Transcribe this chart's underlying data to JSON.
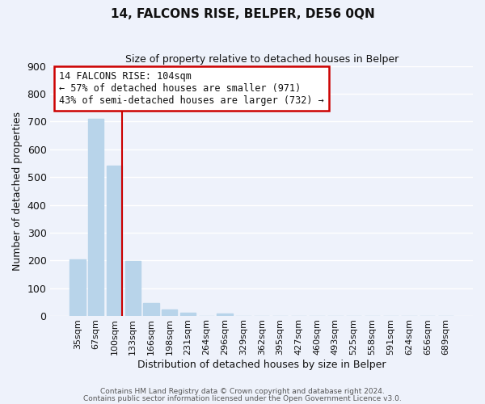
{
  "title": "14, FALCONS RISE, BELPER, DE56 0QN",
  "subtitle": "Size of property relative to detached houses in Belper",
  "xlabel": "Distribution of detached houses by size in Belper",
  "ylabel": "Number of detached properties",
  "bar_labels": [
    "35sqm",
    "67sqm",
    "100sqm",
    "133sqm",
    "166sqm",
    "198sqm",
    "231sqm",
    "264sqm",
    "296sqm",
    "329sqm",
    "362sqm",
    "395sqm",
    "427sqm",
    "460sqm",
    "493sqm",
    "525sqm",
    "558sqm",
    "591sqm",
    "624sqm",
    "656sqm",
    "689sqm"
  ],
  "bar_values": [
    205,
    710,
    540,
    197,
    47,
    22,
    13,
    0,
    10,
    0,
    0,
    0,
    0,
    0,
    0,
    0,
    0,
    0,
    0,
    0,
    0
  ],
  "bar_color": "#b8d4ea",
  "highlight_bar_index": 2,
  "annotation_title": "14 FALCONS RISE: 104sqm",
  "annotation_line1": "← 57% of detached houses are smaller (971)",
  "annotation_line2": "43% of semi-detached houses are larger (732) →",
  "annotation_box_facecolor": "#ffffff",
  "annotation_box_edgecolor": "#cc0000",
  "vline_color": "#cc0000",
  "ylim": [
    0,
    900
  ],
  "yticks": [
    0,
    100,
    200,
    300,
    400,
    500,
    600,
    700,
    800,
    900
  ],
  "footer_line1": "Contains HM Land Registry data © Crown copyright and database right 2024.",
  "footer_line2": "Contains public sector information licensed under the Open Government Licence v3.0.",
  "background_color": "#eef2fb",
  "grid_color": "#ffffff",
  "title_fontsize": 11,
  "subtitle_fontsize": 9,
  "ylabel_fontsize": 9,
  "xlabel_fontsize": 9,
  "tick_fontsize": 8,
  "footer_fontsize": 6.5
}
